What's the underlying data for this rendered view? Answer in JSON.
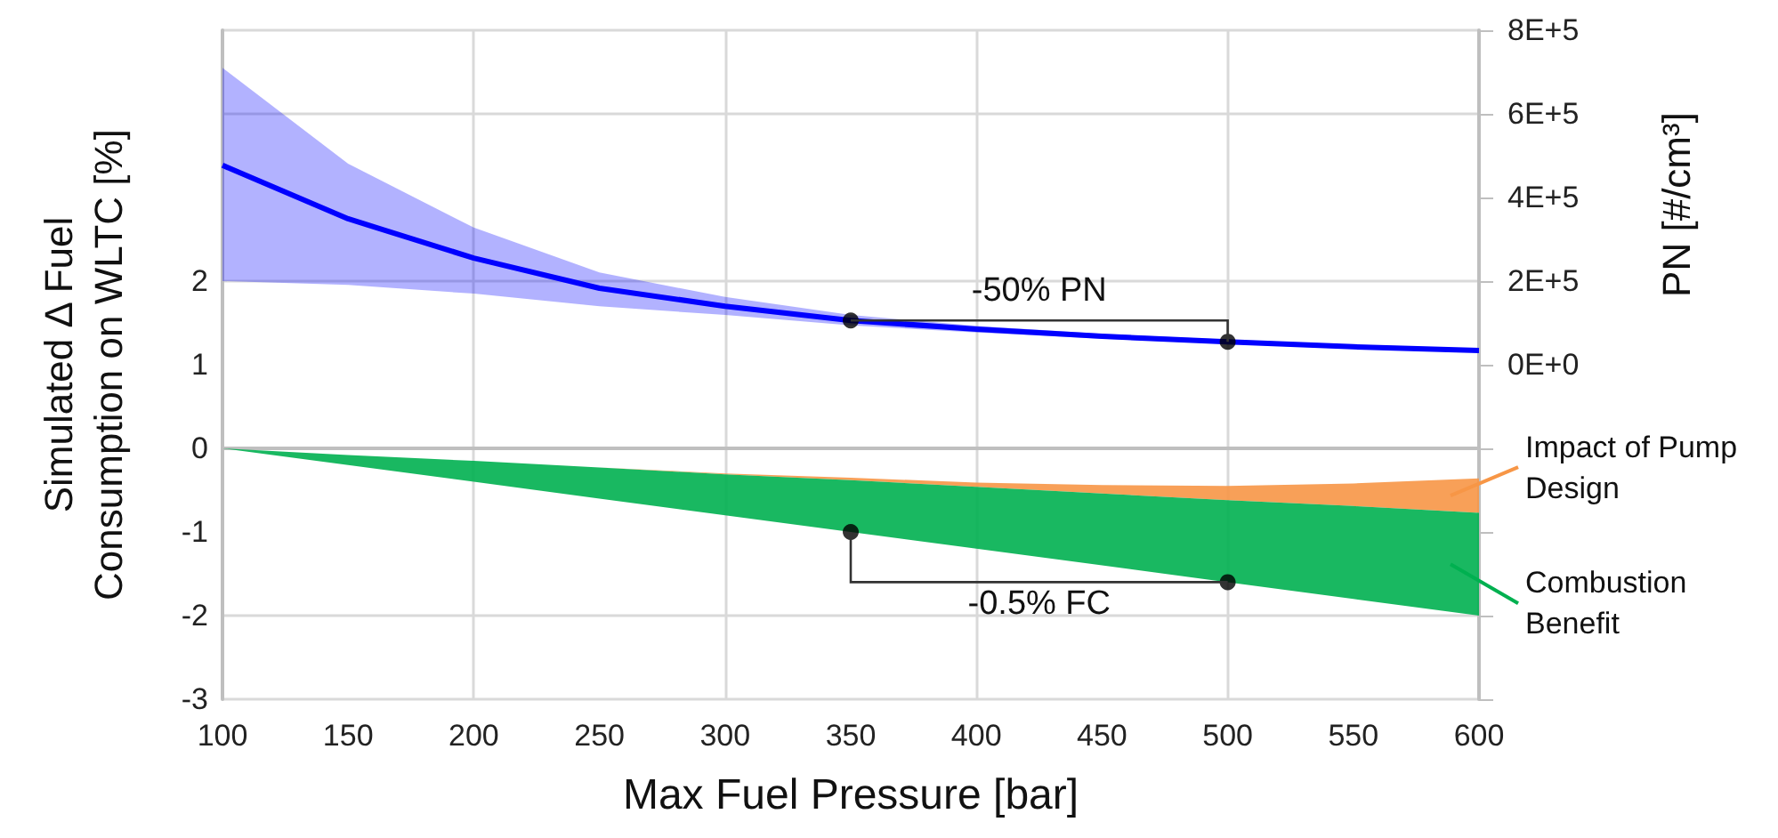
{
  "chart_data": {
    "type": "line",
    "xlabel": "Max Fuel Pressure [bar]",
    "ylabel": "Simulated Δ Fuel\nConsumption on WLTC [%]",
    "y2label": "PN [#/cm³]",
    "xlim": [
      100,
      600
    ],
    "xticks": [
      100,
      150,
      200,
      250,
      300,
      350,
      400,
      450,
      500,
      550,
      600
    ],
    "ylim": [
      -3,
      5
    ],
    "yticks": [
      -3,
      -2,
      -1,
      0,
      1,
      2,
      {
        "value": 3,
        "label": null
      },
      {
        "value": 4,
        "label": null
      },
      {
        "value": 5,
        "label": null
      }
    ],
    "y2lim": [
      -800000,
      800000
    ],
    "y2ticks": [
      {
        "value": 0,
        "label": "0E+0"
      },
      {
        "value": 200000,
        "label": "2E+5"
      },
      {
        "value": 400000,
        "label": "4E+5"
      },
      {
        "value": 600000,
        "label": "6E+5"
      },
      {
        "value": 800000,
        "label": "8E+5"
      }
    ],
    "grid": true,
    "legend": "right",
    "annotations": [
      "-50% PN",
      "-0.5% FC"
    ],
    "series": [
      {
        "type": "line",
        "axis": "y2",
        "color": "#0000ff",
        "x": [
          100,
          150,
          200,
          250,
          300,
          350,
          400,
          450,
          500,
          550,
          600
        ],
        "values": [
          477000,
          349000,
          255000,
          183000,
          140000,
          106000,
          85000,
          68000,
          55000,
          43000,
          34000
        ],
        "lower": [
          200000,
          191000,
          170000,
          140000,
          119000,
          94000,
          77000,
          62000,
          50000,
          38000,
          29000
        ],
        "upper": [
          710000,
          481000,
          328000,
          221000,
          162000,
          119000,
          93000,
          74000,
          60000,
          48000,
          39000
        ]
      },
      {
        "type": "line",
        "name": "Impact of Pump Design",
        "color": "#f79646",
        "x": [
          100,
          150,
          200,
          250,
          300,
          350,
          400,
          450,
          500,
          550,
          600
        ],
        "values": [
          null,
          null,
          null,
          null,
          null,
          null,
          null,
          null,
          null,
          null,
          null
        ],
        "upper": [
          0,
          -0.08,
          -0.15,
          -0.23,
          -0.3,
          -0.35,
          -0.41,
          -0.44,
          -0.45,
          -0.42,
          -0.36
        ],
        "lower": [
          0,
          -0.08,
          -0.15,
          -0.23,
          -0.31,
          -0.38,
          -0.46,
          -0.54,
          -0.62,
          -0.69,
          -0.77
        ]
      },
      {
        "type": "line",
        "name": "Combustion Benefit",
        "color": "#00b050",
        "x": [
          100,
          150,
          200,
          250,
          300,
          350,
          400,
          450,
          500,
          550,
          600
        ],
        "values": [
          null,
          null,
          null,
          null,
          null,
          null,
          null,
          null,
          null,
          null,
          null
        ],
        "upper": [
          0,
          -0.08,
          -0.15,
          -0.23,
          -0.31,
          -0.38,
          -0.46,
          -0.54,
          -0.62,
          -0.69,
          -0.77
        ],
        "lower": [
          0,
          -0.2,
          -0.4,
          -0.6,
          -0.8,
          -1.0,
          -1.2,
          -1.4,
          -1.6,
          -1.8,
          -2.0
        ]
      },
      {
        "type": "scatter",
        "axis": "y2",
        "color": "#000000",
        "marker": "circle",
        "x": [
          350,
          500
        ],
        "values": [
          106000,
          55000
        ]
      },
      {
        "type": "scatter",
        "color": "#000000",
        "marker": "circle",
        "x": [
          350,
          500
        ],
        "values": [
          -1,
          -1.6
        ]
      }
    ]
  }
}
